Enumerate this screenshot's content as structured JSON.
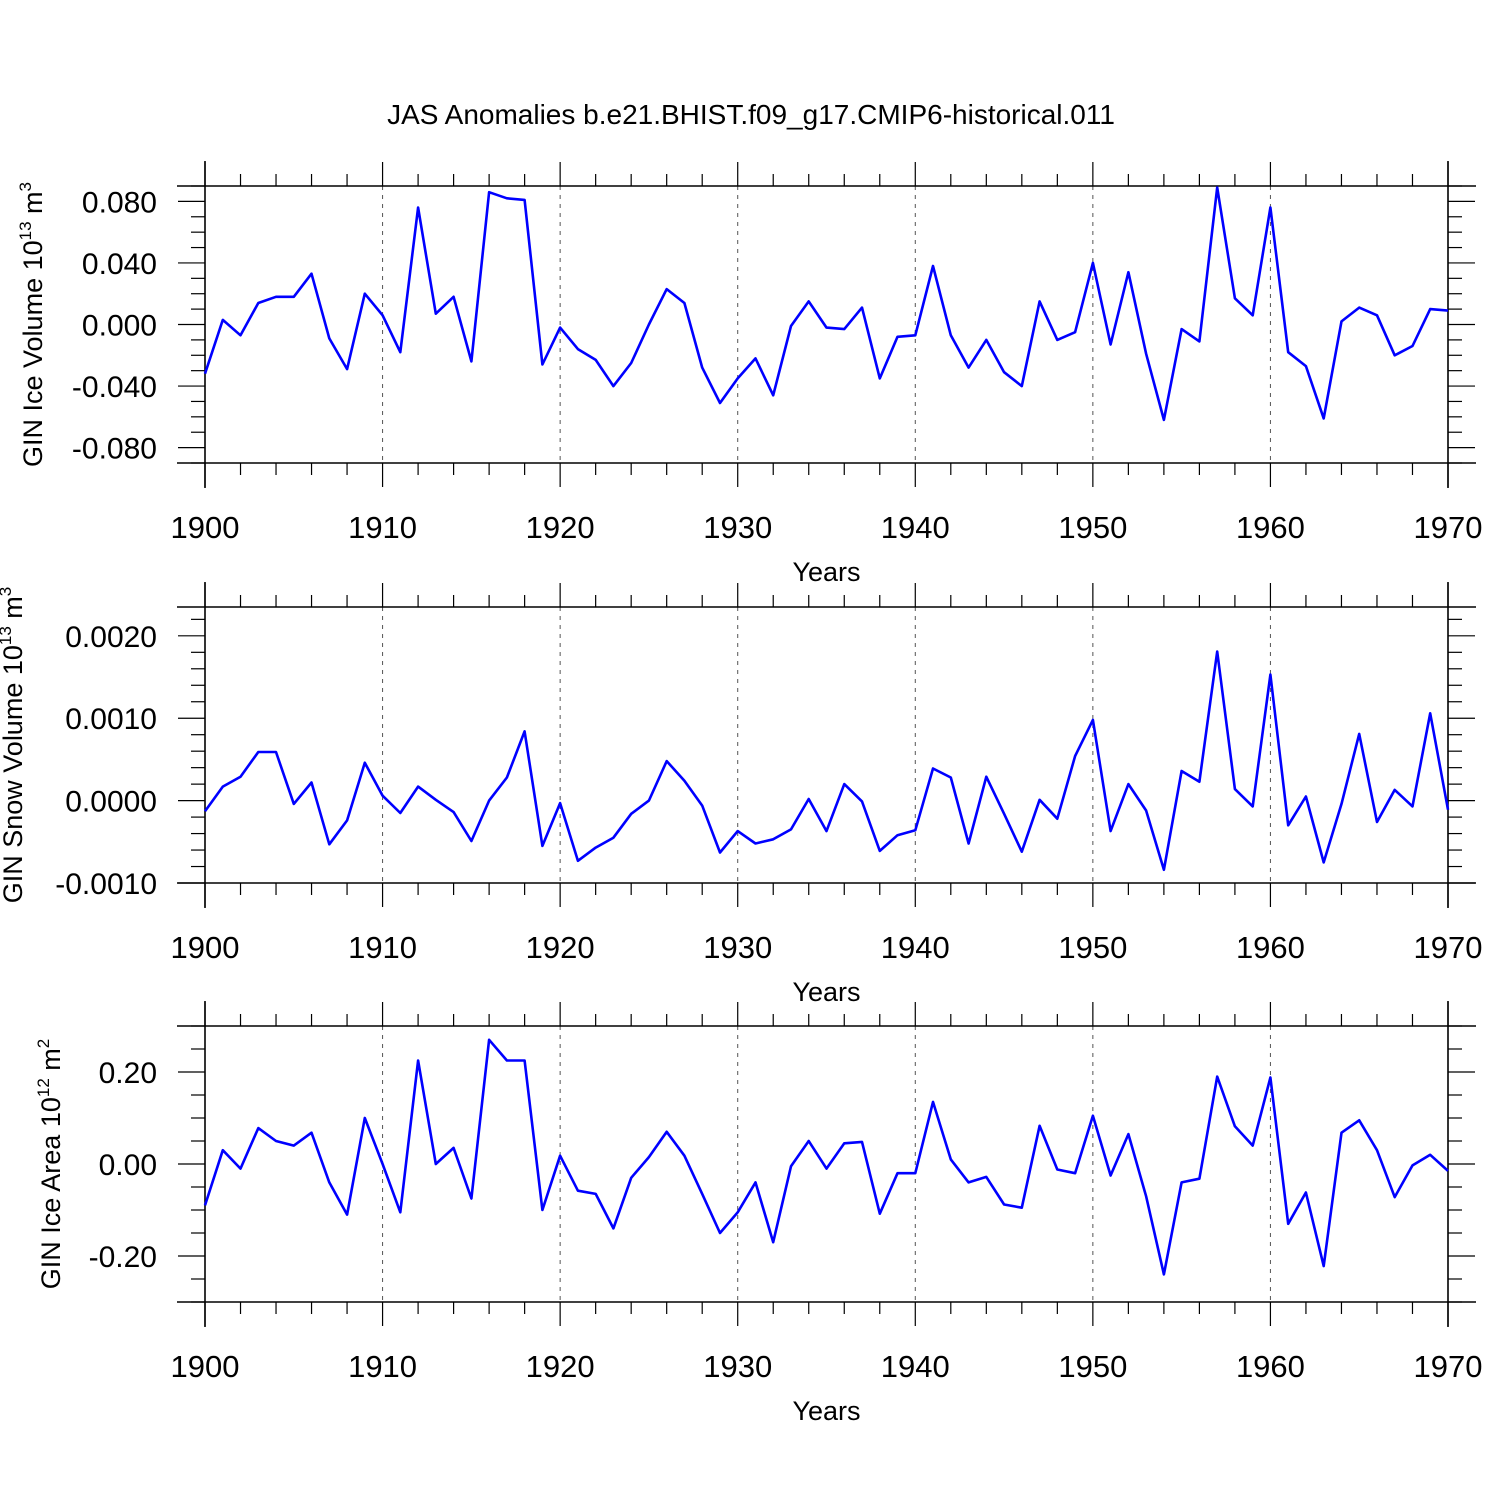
{
  "figure": {
    "title": "JAS Anomalies b.e21.BHIST.f09_g17.CMIP6-historical.011",
    "line_color": "#0000ff",
    "grid_color": "#555555"
  },
  "chart_data": [
    {
      "type": "line",
      "name": "ice-volume",
      "ylabel": {
        "main": "GIN Ice Volume 10",
        "exp": "13",
        "unit": " m",
        "unit_exp": "3"
      },
      "xlabel": "Years",
      "xlim": [
        1900,
        1970
      ],
      "ylim": [
        -0.09,
        0.09
      ],
      "x_ticks": [
        1900,
        1910,
        1920,
        1930,
        1940,
        1950,
        1960,
        1970
      ],
      "x_tick_labels": [
        "1900",
        "1910",
        "1920",
        "1930",
        "1940",
        "1950",
        "1960",
        "1970"
      ],
      "y_ticks": [
        -0.08,
        -0.04,
        0.0,
        0.04,
        0.08
      ],
      "y_tick_labels": [
        "-0.080",
        "-0.040",
        "0.000",
        "0.040",
        "0.080"
      ],
      "y_minor_step": 0.01,
      "grid": "dashed vertical at major x ticks",
      "series": [
        {
          "name": "GIN Ice Volume",
          "x": [
            1900,
            1901,
            1902,
            1903,
            1904,
            1905,
            1906,
            1907,
            1908,
            1909,
            1910,
            1911,
            1912,
            1913,
            1914,
            1915,
            1916,
            1917,
            1918,
            1919,
            1920,
            1921,
            1922,
            1923,
            1924,
            1925,
            1926,
            1927,
            1928,
            1929,
            1930,
            1931,
            1932,
            1933,
            1934,
            1935,
            1936,
            1937,
            1938,
            1939,
            1940,
            1941,
            1942,
            1943,
            1944,
            1945,
            1946,
            1947,
            1948,
            1949,
            1950,
            1951,
            1952,
            1953,
            1954,
            1955,
            1956,
            1957,
            1958,
            1959,
            1960,
            1961,
            1962,
            1963,
            1964,
            1965,
            1966,
            1967,
            1968,
            1969,
            1970
          ],
          "values": [
            -0.032,
            0.003,
            -0.007,
            0.014,
            0.018,
            0.018,
            0.033,
            -0.009,
            -0.029,
            0.02,
            0.006,
            -0.018,
            0.076,
            0.007,
            0.018,
            -0.024,
            0.086,
            0.082,
            0.081,
            -0.026,
            -0.002,
            -0.016,
            -0.023,
            -0.04,
            -0.025,
            0.0,
            0.023,
            0.014,
            -0.028,
            -0.051,
            -0.035,
            -0.022,
            -0.046,
            -0.001,
            0.015,
            -0.002,
            -0.003,
            0.011,
            -0.035,
            -0.008,
            -0.007,
            0.038,
            -0.007,
            -0.028,
            -0.01,
            -0.031,
            -0.04,
            0.015,
            -0.01,
            -0.005,
            0.04,
            -0.013,
            0.034,
            -0.019,
            -0.062,
            -0.003,
            -0.011,
            0.089,
            0.017,
            0.006,
            0.076,
            -0.018,
            -0.027,
            -0.061,
            0.002,
            0.011,
            0.006,
            -0.02,
            -0.014,
            0.01,
            0.009
          ]
        }
      ]
    },
    {
      "type": "line",
      "name": "snow-volume",
      "ylabel": {
        "main": "GIN Snow Volume 10",
        "exp": "13",
        "unit": " m",
        "unit_exp": "3"
      },
      "xlabel": "Years",
      "xlim": [
        1900,
        1970
      ],
      "ylim": [
        -0.001,
        0.00235
      ],
      "x_ticks": [
        1900,
        1910,
        1920,
        1930,
        1940,
        1950,
        1960,
        1970
      ],
      "x_tick_labels": [
        "1900",
        "1910",
        "1920",
        "1930",
        "1940",
        "1950",
        "1960",
        "1970"
      ],
      "y_ticks": [
        -0.001,
        0.0,
        0.001,
        0.002
      ],
      "y_tick_labels": [
        "-0.0010",
        "0.0000",
        "0.0010",
        "0.0020"
      ],
      "y_minor_step": 0.0002,
      "grid": "dashed vertical at major x ticks",
      "series": [
        {
          "name": "GIN Snow Volume",
          "x": [
            1900,
            1901,
            1902,
            1903,
            1904,
            1905,
            1906,
            1907,
            1908,
            1909,
            1910,
            1911,
            1912,
            1913,
            1914,
            1915,
            1916,
            1917,
            1918,
            1919,
            1920,
            1921,
            1922,
            1923,
            1924,
            1925,
            1926,
            1927,
            1928,
            1929,
            1930,
            1931,
            1932,
            1933,
            1934,
            1935,
            1936,
            1937,
            1938,
            1939,
            1940,
            1941,
            1942,
            1943,
            1944,
            1945,
            1946,
            1947,
            1948,
            1949,
            1950,
            1951,
            1952,
            1953,
            1954,
            1955,
            1956,
            1957,
            1958,
            1959,
            1960,
            1961,
            1962,
            1963,
            1964,
            1965,
            1966,
            1967,
            1968,
            1969,
            1970
          ],
          "values": [
            -0.00013,
            0.00017,
            0.00029,
            0.00059,
            0.00059,
            -4e-05,
            0.00022,
            -0.00053,
            -0.00024,
            0.00046,
            6e-05,
            -0.00015,
            0.00017,
            1e-05,
            -0.00014,
            -0.00049,
            0.0,
            0.00028,
            0.00084,
            -0.00055,
            -3e-05,
            -0.00073,
            -0.00057,
            -0.00045,
            -0.00016,
            0.0,
            0.00048,
            0.00024,
            -6e-05,
            -0.00063,
            -0.00037,
            -0.00052,
            -0.00047,
            -0.00035,
            2e-05,
            -0.00037,
            0.0002,
            -1e-05,
            -0.00061,
            -0.00042,
            -0.00036,
            0.00039,
            0.00028,
            -0.00052,
            0.00029,
            -0.00016,
            -0.00062,
            1e-05,
            -0.00022,
            0.00054,
            0.00098,
            -0.00037,
            0.0002,
            -0.00012,
            -0.00084,
            0.00036,
            0.00023,
            0.00181,
            0.00014,
            -7e-05,
            0.00153,
            -0.0003,
            5e-05,
            -0.00075,
            -4e-05,
            0.00081,
            -0.00026,
            0.00013,
            -7e-05,
            0.00106,
            -0.00011
          ]
        }
      ]
    },
    {
      "type": "line",
      "name": "ice-area",
      "ylabel": {
        "main": "GIN Ice Area 10",
        "exp": "12",
        "unit": " m",
        "unit_exp": "2"
      },
      "xlabel": "Years",
      "xlim": [
        1900,
        1970
      ],
      "ylim": [
        -0.3,
        0.3
      ],
      "x_ticks": [
        1900,
        1910,
        1920,
        1930,
        1940,
        1950,
        1960,
        1970
      ],
      "x_tick_labels": [
        "1900",
        "1910",
        "1920",
        "1930",
        "1940",
        "1950",
        "1960",
        "1970"
      ],
      "y_ticks": [
        -0.2,
        0.0,
        0.2
      ],
      "y_tick_labels": [
        "-0.20",
        "0.00",
        "0.20"
      ],
      "y_minor_step": 0.05,
      "grid": "dashed vertical at major x ticks",
      "series": [
        {
          "name": "GIN Ice Area",
          "x": [
            1900,
            1901,
            1902,
            1903,
            1904,
            1905,
            1906,
            1907,
            1908,
            1909,
            1910,
            1911,
            1912,
            1913,
            1914,
            1915,
            1916,
            1917,
            1918,
            1919,
            1920,
            1921,
            1922,
            1923,
            1924,
            1925,
            1926,
            1927,
            1928,
            1929,
            1930,
            1931,
            1932,
            1933,
            1934,
            1935,
            1936,
            1937,
            1938,
            1939,
            1940,
            1941,
            1942,
            1943,
            1944,
            1945,
            1946,
            1947,
            1948,
            1949,
            1950,
            1951,
            1952,
            1953,
            1954,
            1955,
            1956,
            1957,
            1958,
            1959,
            1960,
            1961,
            1962,
            1963,
            1964,
            1965,
            1966,
            1967,
            1968,
            1969,
            1970
          ],
          "values": [
            -0.09,
            0.03,
            -0.01,
            0.078,
            0.05,
            0.04,
            0.068,
            -0.04,
            -0.11,
            0.1,
            0.0,
            -0.105,
            0.225,
            0.0,
            0.035,
            -0.075,
            0.27,
            0.225,
            0.225,
            -0.1,
            0.018,
            -0.058,
            -0.065,
            -0.14,
            -0.03,
            0.015,
            0.07,
            0.018,
            -0.065,
            -0.15,
            -0.105,
            -0.04,
            -0.17,
            -0.005,
            0.05,
            -0.01,
            0.045,
            0.048,
            -0.108,
            -0.02,
            -0.02,
            0.135,
            0.01,
            -0.04,
            -0.028,
            -0.088,
            -0.095,
            0.083,
            -0.012,
            -0.02,
            0.105,
            -0.025,
            0.065,
            -0.07,
            -0.24,
            -0.04,
            -0.032,
            0.19,
            0.082,
            0.04,
            0.188,
            -0.13,
            -0.062,
            -0.222,
            0.068,
            0.095,
            0.03,
            -0.072,
            -0.003,
            0.02,
            -0.015
          ]
        }
      ]
    }
  ]
}
